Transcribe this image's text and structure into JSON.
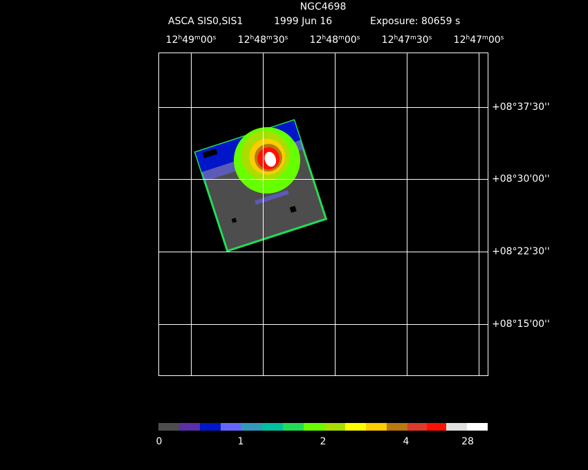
{
  "header": {
    "object": "NGC4698",
    "instrument": "ASCA SIS0,SIS1",
    "date": "1999 Jun 16",
    "exposure": "Exposure: 80659 s"
  },
  "ra_units": [
    "h",
    "m",
    "s"
  ],
  "ra_labels": [
    {
      "hours": "12",
      "minutes": "49",
      "seconds": "00"
    },
    {
      "hours": "12",
      "minutes": "48",
      "seconds": "30"
    },
    {
      "hours": "12",
      "minutes": "48",
      "seconds": "00"
    },
    {
      "hours": "12",
      "minutes": "47",
      "seconds": "30"
    },
    {
      "hours": "12",
      "minutes": "47",
      "seconds": "00"
    }
  ],
  "dec_labels": [
    "+08°37'30''",
    "+08°30'00''",
    "+08°22'30''",
    "+08°15'00''"
  ],
  "colorbar_labels": [
    "0",
    "1",
    "2",
    "4",
    "28"
  ]
}
